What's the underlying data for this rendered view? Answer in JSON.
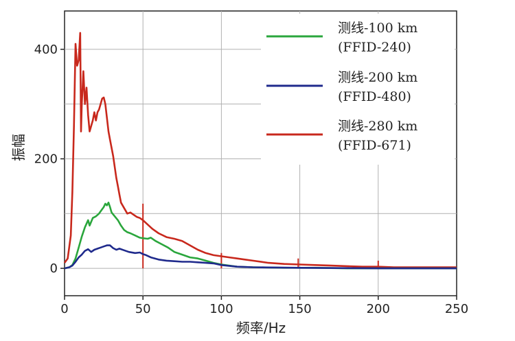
{
  "chart_data": {
    "type": "line",
    "xlabel": "频率/Hz",
    "ylabel": "振幅",
    "xlim": [
      0,
      250
    ],
    "ylim": [
      -50,
      470
    ],
    "xticks": [
      0,
      50,
      100,
      150,
      200,
      250
    ],
    "yticks": [
      0,
      200,
      400
    ],
    "grid": true,
    "legend_position": "top-right",
    "series": [
      {
        "name": "测线-100 km",
        "name2": "(FFID-240)",
        "color": "#2aa63c",
        "x": [
          0,
          3,
          5,
          7,
          9,
          11,
          13,
          15,
          16,
          18,
          20,
          22,
          24,
          25,
          26,
          27,
          28,
          29,
          30,
          32,
          34,
          36,
          38,
          40,
          42,
          45,
          48,
          50,
          53,
          55,
          58,
          62,
          66,
          70,
          75,
          80,
          85,
          90,
          95,
          100,
          110,
          120,
          140,
          160,
          180,
          200,
          220,
          250
        ],
        "y": [
          0,
          2,
          6,
          18,
          38,
          58,
          75,
          88,
          78,
          92,
          95,
          100,
          108,
          112,
          118,
          115,
          120,
          112,
          102,
          95,
          88,
          78,
          70,
          66,
          64,
          60,
          56,
          55,
          54,
          56,
          50,
          44,
          38,
          30,
          25,
          20,
          18,
          14,
          10,
          7,
          3,
          2,
          1,
          1,
          0,
          0,
          0,
          0
        ]
      },
      {
        "name": "测线-200 km",
        "name2": "(FFID-480)",
        "color": "#1f2a8c",
        "x": [
          0,
          3,
          5,
          7,
          9,
          11,
          13,
          15,
          17,
          19,
          21,
          23,
          25,
          27,
          29,
          31,
          33,
          35,
          38,
          41,
          45,
          48,
          50,
          52,
          55,
          60,
          65,
          70,
          75,
          80,
          85,
          90,
          95,
          100,
          110,
          120,
          150,
          200,
          250
        ],
        "y": [
          0,
          2,
          5,
          12,
          20,
          25,
          32,
          35,
          30,
          34,
          36,
          38,
          40,
          42,
          42,
          37,
          34,
          36,
          33,
          30,
          28,
          29,
          26,
          24,
          20,
          16,
          14,
          13,
          12,
          12,
          11,
          10,
          9,
          6,
          3,
          2,
          1,
          0,
          0
        ]
      },
      {
        "name": "测线-280 km",
        "name2": "(FFID-671)",
        "color": "#c8281c",
        "x": [
          0,
          2,
          4,
          5,
          6,
          7,
          8,
          9,
          10,
          10.5,
          11,
          11.5,
          12,
          13,
          14,
          15,
          16,
          17,
          18,
          19,
          20,
          21,
          22,
          23,
          24,
          25,
          26,
          27,
          28,
          29,
          30,
          31,
          32,
          33,
          34,
          35,
          36,
          38,
          40,
          42,
          44,
          46,
          48,
          50,
          53,
          56,
          60,
          65,
          70,
          75,
          80,
          85,
          90,
          95,
          100,
          105,
          110,
          115,
          120,
          130,
          140,
          150,
          160,
          170,
          180,
          190,
          200,
          210,
          220,
          230,
          240,
          250
        ],
        "y": [
          10,
          18,
          60,
          140,
          260,
          410,
          370,
          380,
          430,
          250,
          300,
          330,
          360,
          300,
          330,
          280,
          250,
          260,
          270,
          285,
          270,
          285,
          290,
          300,
          310,
          312,
          300,
          275,
          250,
          235,
          220,
          205,
          185,
          165,
          150,
          135,
          120,
          110,
          100,
          102,
          98,
          94,
          92,
          88,
          80,
          72,
          64,
          57,
          54,
          50,
          42,
          34,
          28,
          24,
          22,
          20,
          18,
          16,
          14,
          10,
          8,
          7,
          6,
          5,
          4,
          3,
          3,
          2,
          2,
          2,
          2,
          2
        ],
        "spikes": [
          {
            "x": 50,
            "y": 118
          },
          {
            "x": 100,
            "y": 28
          },
          {
            "x": 149,
            "y": 18
          },
          {
            "x": 200,
            "y": 14
          }
        ]
      }
    ]
  }
}
